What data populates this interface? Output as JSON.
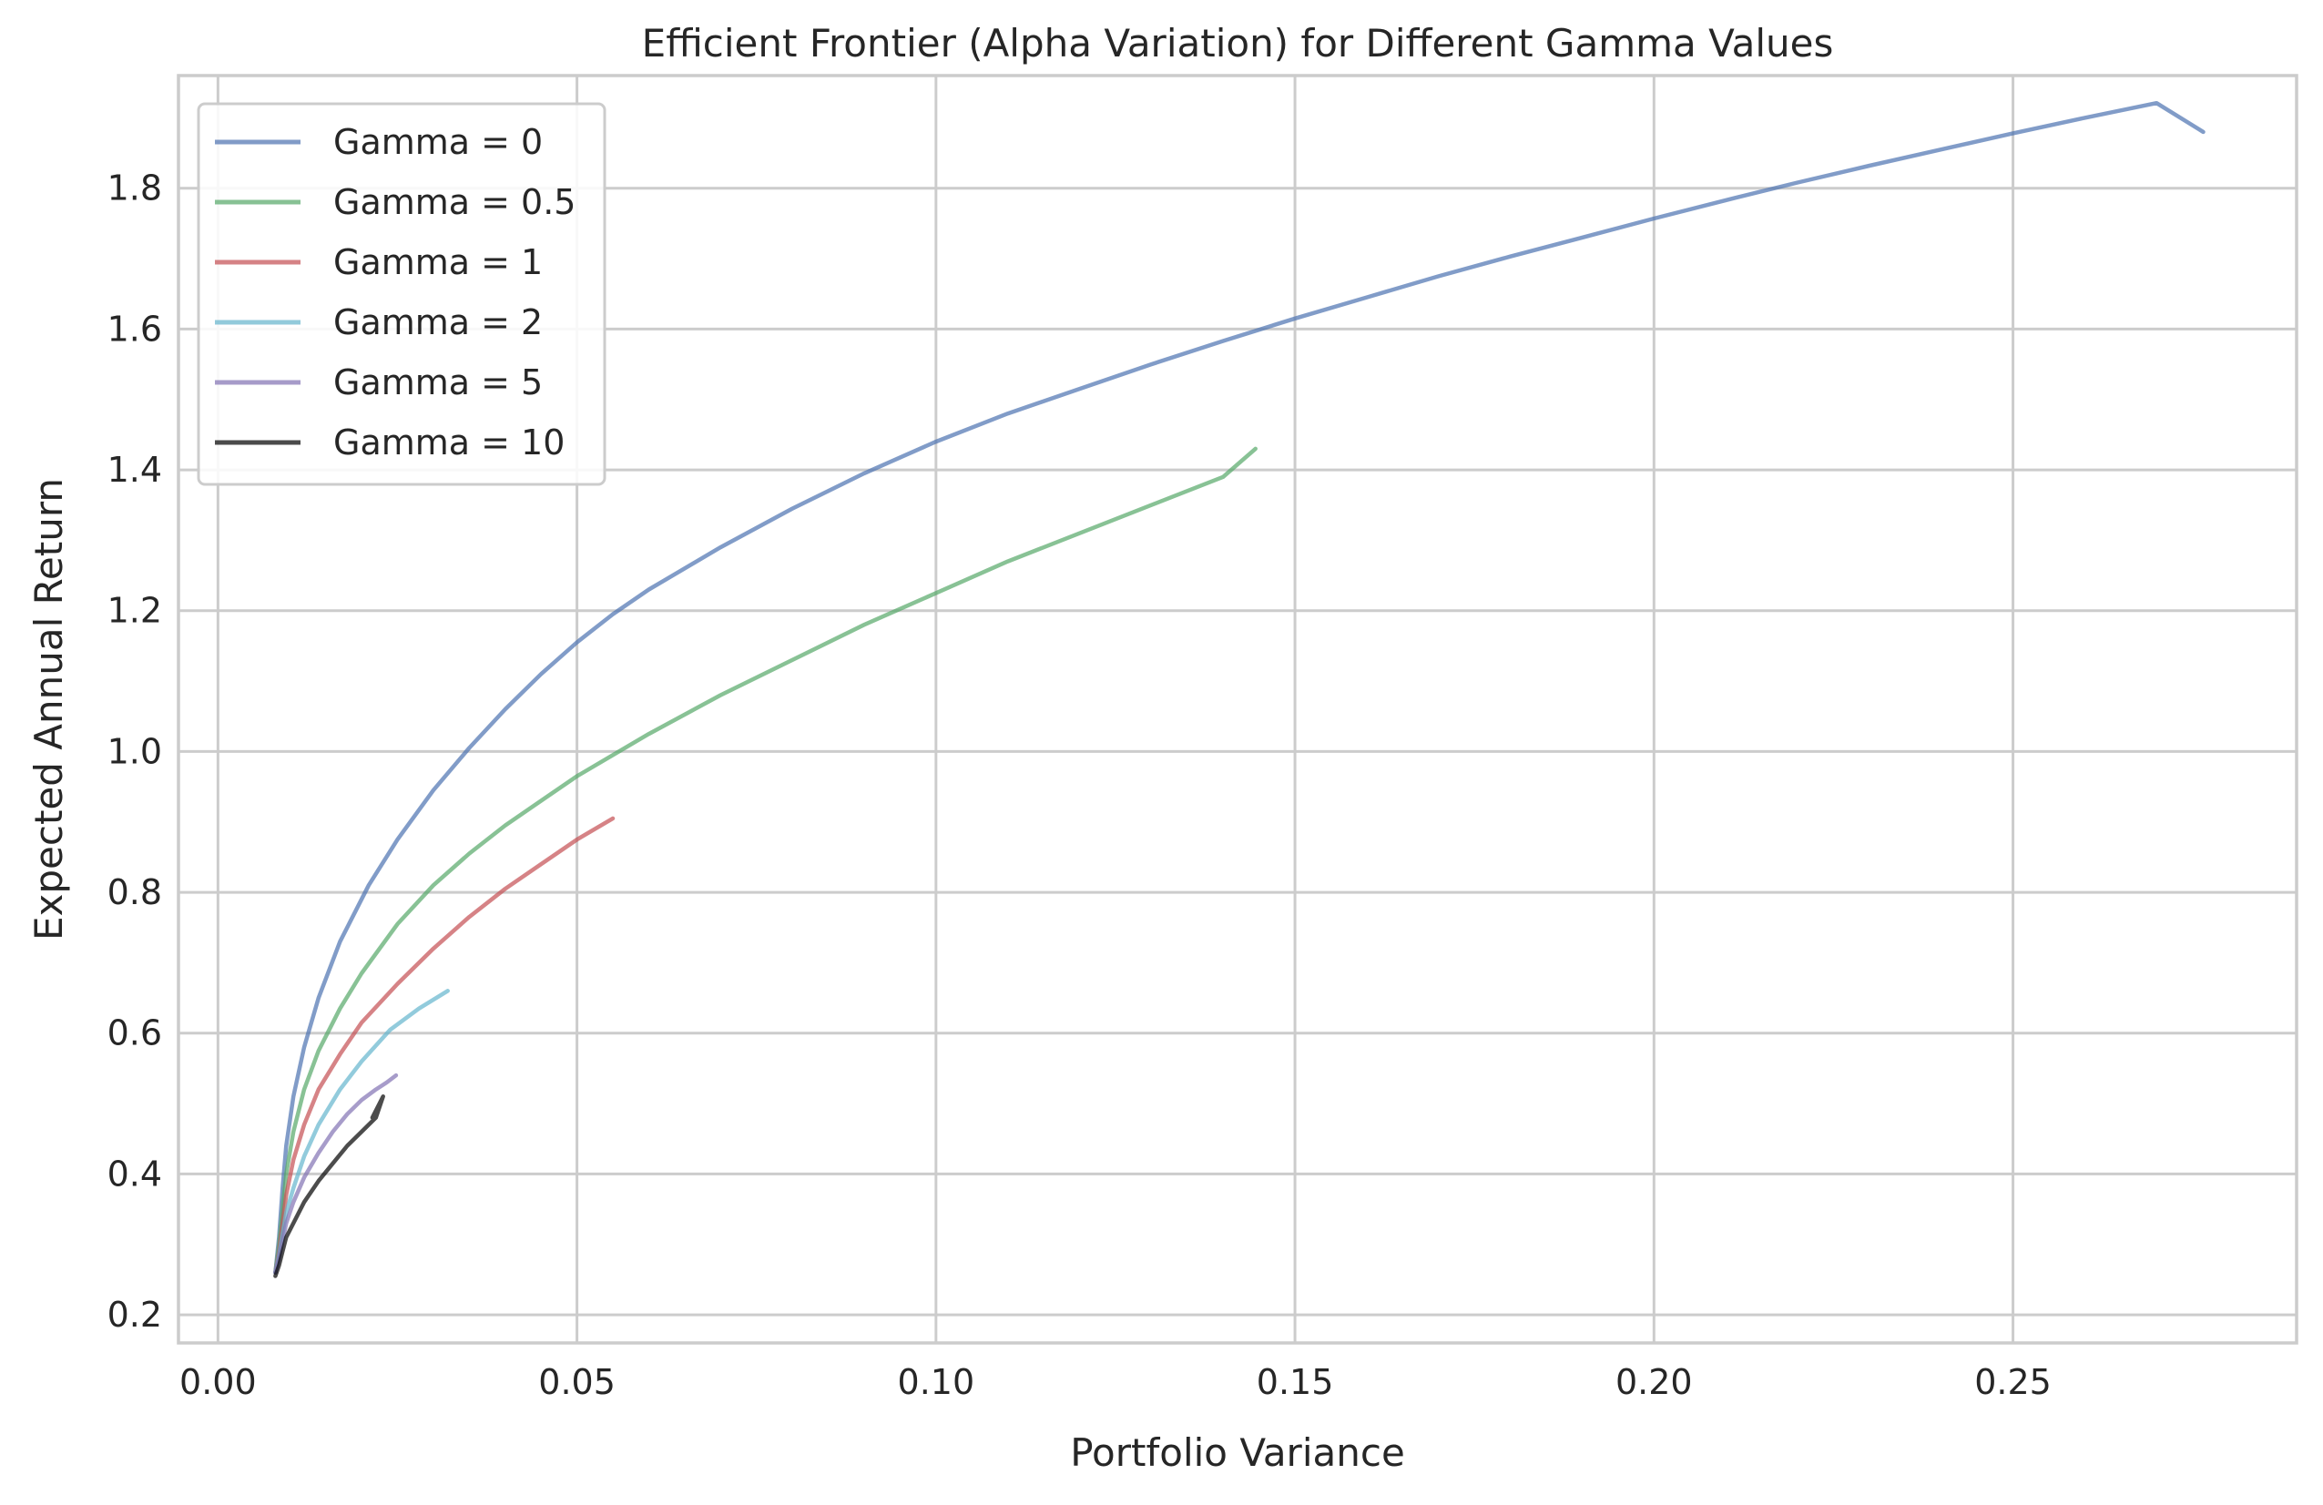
{
  "chart_data": {
    "type": "line",
    "title": "Efficient Frontier (Alpha Variation) for Different Gamma Values",
    "xlabel": "Portfolio Variance",
    "ylabel": "Expected Annual Return",
    "xlim": [
      -0.0055,
      0.2895
    ],
    "ylim": [
      0.16,
      1.96
    ],
    "xticks": [
      0.0,
      0.05,
      0.1,
      0.15,
      0.2,
      0.25
    ],
    "xtick_labels": [
      "0.00",
      "0.05",
      "0.10",
      "0.15",
      "0.20",
      "0.25"
    ],
    "yticks": [
      0.2,
      0.4,
      0.6,
      0.8,
      1.0,
      1.2,
      1.4,
      1.6,
      1.8
    ],
    "ytick_labels": [
      "0.2",
      "0.4",
      "0.6",
      "0.8",
      "1.0",
      "1.2",
      "1.4",
      "1.6",
      "1.8"
    ],
    "grid": true,
    "legend_position": "top-left",
    "series": [
      {
        "name": "Gamma = 0",
        "color": "#4c72b0",
        "x": [
          0.008,
          0.0085,
          0.009,
          0.0095,
          0.0105,
          0.012,
          0.014,
          0.017,
          0.021,
          0.025,
          0.03,
          0.035,
          0.04,
          0.045,
          0.05,
          0.055,
          0.06,
          0.07,
          0.08,
          0.09,
          0.1,
          0.11,
          0.12,
          0.13,
          0.14,
          0.15,
          0.16,
          0.17,
          0.18,
          0.19,
          0.2,
          0.21,
          0.22,
          0.23,
          0.24,
          0.25,
          0.26,
          0.27,
          0.2765
        ],
        "y": [
          0.26,
          0.31,
          0.38,
          0.44,
          0.51,
          0.58,
          0.65,
          0.73,
          0.81,
          0.875,
          0.945,
          1.005,
          1.06,
          1.11,
          1.155,
          1.195,
          1.23,
          1.29,
          1.345,
          1.395,
          1.44,
          1.48,
          1.515,
          1.55,
          1.583,
          1.615,
          1.645,
          1.675,
          1.703,
          1.73,
          1.757,
          1.783,
          1.808,
          1.832,
          1.855,
          1.878,
          1.9,
          1.921,
          1.88
        ]
      },
      {
        "name": "Gamma = 0.5",
        "color": "#55a868",
        "x": [
          0.008,
          0.0085,
          0.009,
          0.0095,
          0.0105,
          0.012,
          0.014,
          0.017,
          0.02,
          0.025,
          0.03,
          0.035,
          0.04,
          0.045,
          0.05,
          0.055,
          0.06,
          0.07,
          0.08,
          0.09,
          0.1,
          0.11,
          0.12,
          0.13,
          0.14,
          0.1445
        ],
        "y": [
          0.26,
          0.3,
          0.35,
          0.4,
          0.46,
          0.52,
          0.575,
          0.635,
          0.685,
          0.755,
          0.81,
          0.855,
          0.895,
          0.93,
          0.965,
          0.995,
          1.025,
          1.08,
          1.13,
          1.18,
          1.225,
          1.27,
          1.31,
          1.35,
          1.39,
          1.43
        ]
      },
      {
        "name": "Gamma = 1",
        "color": "#c44e52",
        "x": [
          0.008,
          0.0085,
          0.009,
          0.0095,
          0.0105,
          0.012,
          0.014,
          0.017,
          0.02,
          0.025,
          0.03,
          0.035,
          0.04,
          0.045,
          0.05,
          0.055
        ],
        "y": [
          0.26,
          0.29,
          0.33,
          0.37,
          0.42,
          0.47,
          0.52,
          0.57,
          0.615,
          0.67,
          0.72,
          0.765,
          0.805,
          0.84,
          0.875,
          0.905
        ]
      },
      {
        "name": "Gamma = 2",
        "color": "#64b5cd",
        "x": [
          0.008,
          0.0085,
          0.009,
          0.0095,
          0.0105,
          0.012,
          0.014,
          0.017,
          0.02,
          0.024,
          0.028,
          0.032
        ],
        "y": [
          0.26,
          0.285,
          0.315,
          0.345,
          0.38,
          0.425,
          0.47,
          0.52,
          0.56,
          0.605,
          0.635,
          0.66
        ]
      },
      {
        "name": "Gamma = 5",
        "color": "#8172b3",
        "x": [
          0.008,
          0.0085,
          0.009,
          0.0095,
          0.0105,
          0.012,
          0.014,
          0.016,
          0.018,
          0.02,
          0.022,
          0.0235,
          0.0248
        ],
        "y": [
          0.26,
          0.28,
          0.305,
          0.33,
          0.36,
          0.395,
          0.43,
          0.46,
          0.485,
          0.505,
          0.52,
          0.53,
          0.54
        ]
      },
      {
        "name": "Gamma = 10",
        "color": "#000000",
        "x": [
          0.008,
          0.0085,
          0.009,
          0.0095,
          0.0105,
          0.012,
          0.014,
          0.016,
          0.018,
          0.02,
          0.022,
          0.023,
          0.0215,
          0.022
        ],
        "y": [
          0.255,
          0.27,
          0.29,
          0.31,
          0.33,
          0.36,
          0.39,
          0.415,
          0.44,
          0.46,
          0.48,
          0.51,
          0.48,
          0.49
        ]
      }
    ]
  }
}
